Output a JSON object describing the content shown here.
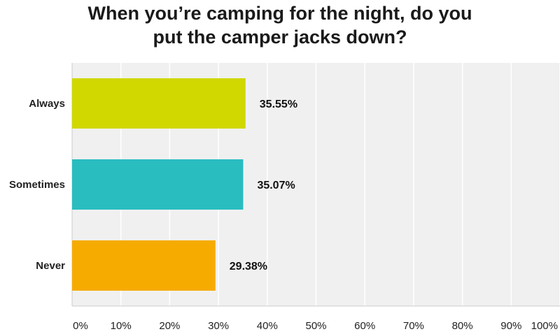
{
  "chart_data": {
    "type": "bar",
    "orientation": "horizontal",
    "title_lines": [
      "When you’re camping for the night, do you",
      "put the camper jacks down?"
    ],
    "categories": [
      "Always",
      "Sometimes",
      "Never"
    ],
    "values": [
      35.55,
      35.07,
      29.38
    ],
    "value_labels": [
      "35.55%",
      "35.07%",
      "29.38%"
    ],
    "colors": [
      "#d0d800",
      "#29bdc0",
      "#f6ab00"
    ],
    "xlim": [
      0,
      100
    ],
    "x_ticks": [
      0,
      10,
      20,
      30,
      40,
      50,
      60,
      70,
      80,
      90,
      100
    ],
    "x_tick_labels": [
      "0%",
      "10%",
      "20%",
      "30%",
      "40%",
      "50%",
      "60%",
      "70%",
      "80%",
      "90%",
      "100%"
    ],
    "xlabel": "",
    "ylabel": "",
    "grid": true,
    "plot_background": "#f0f0f0",
    "legend": "none"
  }
}
